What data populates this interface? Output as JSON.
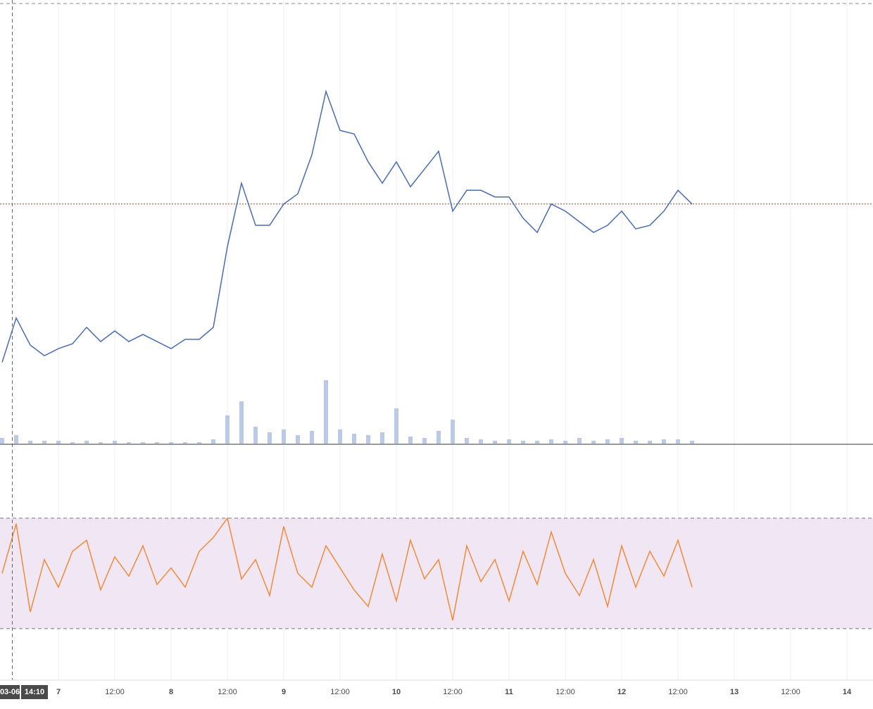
{
  "chart_data": [
    {
      "type": "line",
      "color": "#4a6cb0",
      "x": [
        -12,
        -9,
        -6,
        -3,
        0,
        3,
        6,
        9,
        12,
        15,
        18,
        21,
        24,
        27,
        30,
        33,
        36,
        39,
        42,
        45,
        48,
        51,
        54,
        57,
        60,
        63,
        66,
        69,
        72,
        75,
        78,
        81,
        84,
        87,
        90,
        93,
        96,
        99,
        102,
        105,
        108,
        111,
        114,
        117,
        120,
        123,
        126,
        129,
        132,
        135
      ],
      "values": [
        18.3,
        28.3,
        22.2,
        19.8,
        21.4,
        22.5,
        26.2,
        23,
        25.4,
        23,
        24.6,
        23,
        21.4,
        23.5,
        23.5,
        26.2,
        44.4,
        58.7,
        49.2,
        49.2,
        54,
        56.3,
        65.1,
        79.4,
        70.6,
        69.8,
        63.5,
        58.7,
        63.5,
        57.9,
        61.9,
        65.9,
        52.4,
        57.1,
        57.1,
        55.6,
        55.6,
        50.8,
        47.6,
        54,
        52.4,
        50,
        47.6,
        49.2,
        52.4,
        48.4,
        49.2,
        52.4,
        57.1,
        54
      ],
      "price_line": 54,
      "price_line_color": "#d03030",
      "high_line": 99.2,
      "xlim": [
        -12.45,
        173.55
      ],
      "ylim": [
        0,
        100
      ]
    },
    {
      "type": "bar",
      "color": "#b9c9e6",
      "x": [
        -12,
        -9,
        -6,
        -3,
        0,
        3,
        6,
        9,
        12,
        15,
        18,
        21,
        24,
        27,
        30,
        33,
        36,
        39,
        42,
        45,
        48,
        51,
        54,
        57,
        60,
        63,
        66,
        69,
        72,
        75,
        78,
        81,
        84,
        87,
        90,
        93,
        96,
        99,
        102,
        105,
        108,
        111,
        114,
        117,
        120,
        123,
        126,
        129,
        132,
        135
      ],
      "values": [
        4,
        6,
        2,
        2,
        2,
        1,
        2,
        1,
        2,
        1,
        1,
        1,
        1,
        1,
        1,
        3,
        20,
        30,
        12,
        8,
        10,
        6,
        9,
        45,
        10,
        7,
        6,
        8,
        25,
        5,
        4,
        9,
        17,
        4,
        3,
        2,
        3,
        2,
        2,
        3,
        2,
        4,
        2,
        3,
        4,
        2,
        2,
        3,
        3,
        2
      ],
      "xlim": [
        -12.45,
        173.55
      ],
      "ylim": [
        0,
        100
      ]
    },
    {
      "type": "line",
      "color": "#f08a3c",
      "band": [
        30,
        70
      ],
      "band_color": "#f1e6f3",
      "x": [
        -12,
        -9,
        -6,
        -3,
        0,
        3,
        6,
        9,
        12,
        15,
        18,
        21,
        24,
        27,
        30,
        33,
        36,
        39,
        42,
        45,
        48,
        51,
        54,
        57,
        60,
        63,
        66,
        69,
        72,
        75,
        78,
        81,
        84,
        87,
        90,
        93,
        96,
        99,
        102,
        105,
        108,
        111,
        114,
        117,
        120,
        123,
        126,
        129,
        132,
        135
      ],
      "values": [
        50,
        68,
        36,
        55,
        45,
        58,
        62,
        44,
        56,
        49,
        60,
        46,
        52,
        45,
        58,
        63,
        70,
        48,
        55,
        42,
        67,
        50,
        45,
        60,
        52,
        44,
        38,
        57,
        40,
        62,
        48,
        55,
        33,
        60,
        47,
        55,
        40,
        58,
        46,
        65,
        50,
        42,
        55,
        38,
        60,
        45,
        58,
        49,
        62,
        45
      ],
      "xlim": [
        -12.45,
        173.55
      ],
      "ylim": [
        11.6,
        96.5
      ],
      "xticks": [
        {
          "value": 0,
          "label": "7"
        },
        {
          "value": 12,
          "label": "12:00"
        },
        {
          "value": 24,
          "label": "8"
        },
        {
          "value": 36,
          "label": "12:00"
        },
        {
          "value": 48,
          "label": "9"
        },
        {
          "value": 60,
          "label": "12:00"
        },
        {
          "value": 72,
          "label": "10"
        },
        {
          "value": 84,
          "label": "12:00"
        },
        {
          "value": 96,
          "label": "11"
        },
        {
          "value": 108,
          "label": "12:00"
        },
        {
          "value": 120,
          "label": "12"
        },
        {
          "value": 132,
          "label": "12:00"
        },
        {
          "value": 144,
          "label": "13"
        },
        {
          "value": 156,
          "label": "12:00"
        },
        {
          "value": 168,
          "label": "14"
        }
      ],
      "crosshair": {
        "x": -9.83,
        "date_label": "03-06",
        "time_label": "14:10"
      }
    }
  ]
}
